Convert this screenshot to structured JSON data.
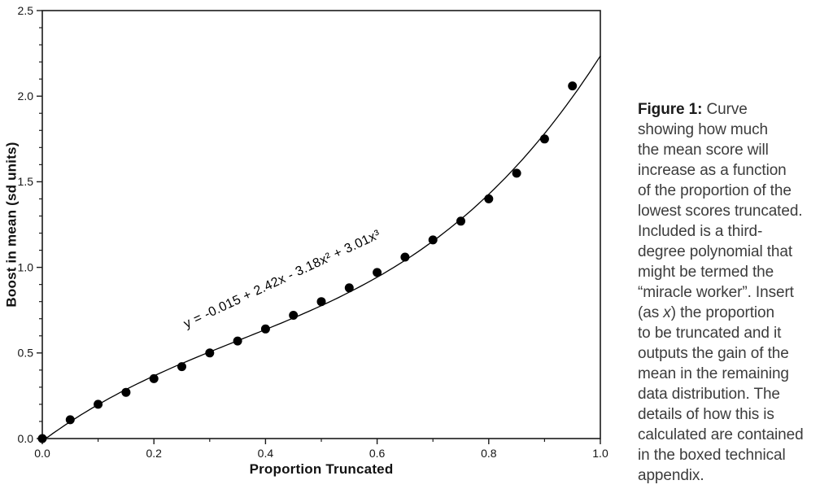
{
  "colors": {
    "ink": "#000000",
    "frame": "#1b1b1b",
    "tick_label": "#141414",
    "caption_text": "#3c3c3c"
  },
  "chart_data": {
    "type": "scatter",
    "title": "",
    "xlabel": "Proportion Truncated",
    "ylabel": "Boost in mean (sd units)",
    "xlim": [
      0,
      1.0
    ],
    "ylim": [
      0,
      2.5
    ],
    "x_major_ticks": [
      0,
      0.2,
      0.4,
      0.6,
      0.8,
      1.0
    ],
    "x_tick_labels": [
      "0.0",
      "0.2",
      "0.4",
      "0.6",
      "0.8",
      "1.0"
    ],
    "x_minor_step": 0.1,
    "y_major_ticks": [
      0,
      0.5,
      1.0,
      1.5,
      2.0,
      2.5
    ],
    "y_tick_labels": [
      "0.0",
      "0.5",
      "1.0",
      "1.5",
      "2.0",
      "2.5"
    ],
    "y_minor_step": 0.1,
    "grid": false,
    "frame": "box",
    "legend": "none",
    "series": [
      {
        "name": "boost-in-mean-points",
        "type": "scatter",
        "marker": "filled-circle",
        "color": "#000000",
        "x": [
          0,
          0.05,
          0.1,
          0.15,
          0.2,
          0.25,
          0.3,
          0.35,
          0.4,
          0.45,
          0.5,
          0.55,
          0.6,
          0.65,
          0.7,
          0.75,
          0.8,
          0.85,
          0.9,
          0.95
        ],
        "y": [
          0.0,
          0.11,
          0.2,
          0.27,
          0.35,
          0.42,
          0.5,
          0.57,
          0.64,
          0.72,
          0.8,
          0.88,
          0.97,
          1.06,
          1.16,
          1.27,
          1.4,
          1.55,
          1.75,
          2.06
        ]
      },
      {
        "name": "cubic-fit-curve",
        "type": "line",
        "color": "#000000",
        "coefficients": [
          -0.015,
          2.42,
          -3.18,
          3.01
        ],
        "x_range": [
          0,
          1.0
        ],
        "label": "y = -0.015 + 2.42x - 3.18x² + 3.01x³"
      }
    ]
  },
  "caption": {
    "lines": [
      [
        {
          "text": "Figure 1:",
          "style": "bold"
        },
        {
          "text": " Curve",
          "style": "normal"
        }
      ],
      [
        {
          "text": "showing how much",
          "style": "normal"
        }
      ],
      [
        {
          "text": "the mean score will",
          "style": "normal"
        }
      ],
      [
        {
          "text": "increase as a function",
          "style": "normal"
        }
      ],
      [
        {
          "text": "of the proportion of the",
          "style": "normal"
        }
      ],
      [
        {
          "text": "lowest scores truncated.",
          "style": "normal"
        }
      ],
      [
        {
          "text": "Included is a third-",
          "style": "normal"
        }
      ],
      [
        {
          "text": "degree polynomial that",
          "style": "normal"
        }
      ],
      [
        {
          "text": "might be termed the",
          "style": "normal"
        }
      ],
      [
        {
          "text": "“miracle worker”. Insert",
          "style": "normal"
        }
      ],
      [
        {
          "text": "(as ",
          "style": "normal"
        },
        {
          "text": "x",
          "style": "italic"
        },
        {
          "text": ") the proportion",
          "style": "normal"
        }
      ],
      [
        {
          "text": "to be truncated and it",
          "style": "normal"
        }
      ],
      [
        {
          "text": "outputs the gain of the",
          "style": "normal"
        }
      ],
      [
        {
          "text": "mean in the remaining",
          "style": "normal"
        }
      ],
      [
        {
          "text": "data distribution. The",
          "style": "normal"
        }
      ],
      [
        {
          "text": "details of how this is",
          "style": "normal"
        }
      ],
      [
        {
          "text": "calculated are contained",
          "style": "normal"
        }
      ],
      [
        {
          "text": "in the boxed technical",
          "style": "normal"
        }
      ],
      [
        {
          "text": "appendix.",
          "style": "normal"
        }
      ]
    ]
  }
}
